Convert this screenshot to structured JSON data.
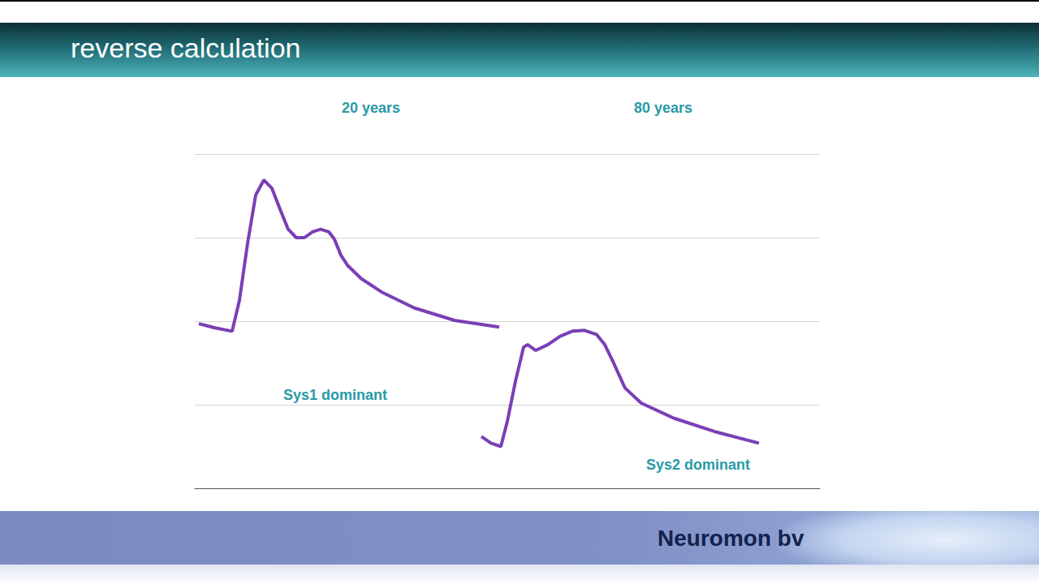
{
  "header": {
    "title": "reverse calculation"
  },
  "chart_data": {
    "type": "line",
    "annotations": [
      "20 years",
      "80 years",
      "Sys1 dominant",
      "Sys2 dominant"
    ],
    "series": [
      {
        "color": "#7a3fb5",
        "x": [
          0.65,
          3.25,
          5.97,
          7.14,
          8.44,
          9.74,
          11.04,
          12.34,
          13.64,
          14.94,
          16.23,
          17.53,
          18.83,
          20.13,
          21.43,
          22.34,
          23.38,
          24.42,
          26.62,
          29.87,
          35.06,
          41.56,
          48.7
        ],
        "values": [
          1.97,
          1.92,
          1.88,
          2.25,
          2.93,
          3.51,
          3.69,
          3.59,
          3.34,
          3.1,
          3.0,
          3.0,
          3.07,
          3.1,
          3.07,
          2.98,
          2.79,
          2.67,
          2.51,
          2.35,
          2.16,
          2.01,
          1.93
        ]
      },
      {
        "color": "#7a3fb5",
        "x": [
          45.84,
          47.4,
          48.96,
          50.0,
          51.3,
          52.6,
          53.25,
          54.55,
          56.49,
          58.44,
          60.39,
          62.34,
          64.29,
          65.58,
          66.88,
          68.83,
          71.43,
          76.62,
          83.12,
          90.26
        ],
        "values": [
          0.62,
          0.54,
          0.5,
          0.8,
          1.28,
          1.69,
          1.72,
          1.65,
          1.72,
          1.82,
          1.88,
          1.89,
          1.84,
          1.72,
          1.52,
          1.2,
          1.02,
          0.84,
          0.68,
          0.54
        ]
      }
    ],
    "xlim": [
      0,
      100
    ],
    "xticks": [
      0,
      100
    ],
    "ylim": [
      0,
      4
    ],
    "yticks": [
      0,
      1,
      2,
      3,
      4
    ],
    "grid": true,
    "tick_labels": false
  },
  "footer": {
    "text": "Neuromon bv"
  }
}
